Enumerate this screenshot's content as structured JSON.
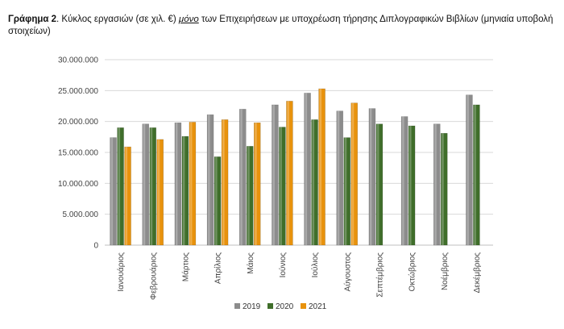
{
  "caption": {
    "label": "Γράφημα 2",
    "pre": ". Κύκλος εργασιών (σε χιλ. €) ",
    "emph": "μόνο",
    "post": " των Επιχειρήσεων με υποχρέωση τήρησης Διπλογραφικών Βιβλίων (μηνιαία υποβολή στοιχείων)"
  },
  "chart_data": {
    "type": "bar",
    "categories": [
      "Ιανουάριος",
      "Φεβρουάριος",
      "Μάρτιος",
      "Απρίλιος",
      "Μάιος",
      "Ιούνιος",
      "Ιούλιος",
      "Αύγουστος",
      "Σεπτέμβριος",
      "Οκτώβριος",
      "Νοέμβριος",
      "Δεκέμβριος"
    ],
    "series": [
      {
        "name": "2019",
        "color": "#8c8c8c",
        "values": [
          17400000,
          19600000,
          19800000,
          21100000,
          22000000,
          22700000,
          24600000,
          21700000,
          22100000,
          20800000,
          19600000,
          24300000
        ]
      },
      {
        "name": "2020",
        "color": "#3f6e2a",
        "values": [
          19000000,
          19000000,
          17600000,
          14300000,
          16000000,
          19100000,
          20300000,
          17400000,
          19600000,
          19300000,
          18100000,
          22700000
        ]
      },
      {
        "name": "2021",
        "color": "#e8920c",
        "values": [
          15900000,
          17100000,
          19900000,
          20300000,
          19800000,
          23300000,
          25300000,
          23000000,
          null,
          null,
          null,
          null
        ]
      }
    ],
    "yticks": [
      "0",
      "5.000.000",
      "10.000.000",
      "15.000.000",
      "20.000.000",
      "25.000.000",
      "30.000.000"
    ],
    "ylim": [
      0,
      30000000
    ],
    "grid": true,
    "legend_position": "bottom-center"
  }
}
